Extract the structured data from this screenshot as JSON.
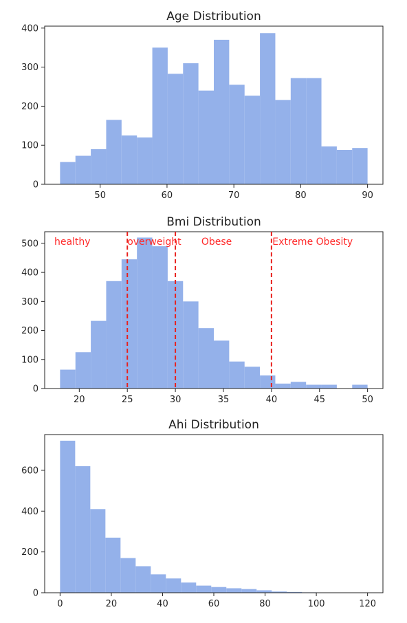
{
  "chart_data": [
    {
      "type": "bar",
      "title": "Age Distribution",
      "xlabel": "",
      "ylabel": "",
      "bar_color": "#94b1ea",
      "xlim": [
        41.7,
        92.3
      ],
      "ylim": [
        0,
        405
      ],
      "xticks": [
        50,
        60,
        70,
        80,
        90
      ],
      "yticks": [
        0,
        100,
        200,
        300,
        400
      ],
      "bin_edges": [
        44,
        46.3,
        48.6,
        50.9,
        53.2,
        55.5,
        57.8,
        60.1,
        62.4,
        64.7,
        67.0,
        69.3,
        71.6,
        73.9,
        76.2,
        78.5,
        80.8,
        83.1,
        85.4,
        87.7,
        90
      ],
      "values": [
        57,
        73,
        90,
        165,
        125,
        120,
        350,
        283,
        310,
        240,
        370,
        255,
        227,
        387,
        216,
        272,
        272,
        97,
        88,
        93
      ],
      "annotations": []
    },
    {
      "type": "bar",
      "title": "Bmi Distribution",
      "xlabel": "",
      "ylabel": "",
      "bar_color": "#94b1ea",
      "xlim": [
        16.4,
        51.6
      ],
      "ylim": [
        0,
        540
      ],
      "xticks": [
        20,
        25,
        30,
        35,
        40,
        45,
        50
      ],
      "yticks": [
        0,
        100,
        200,
        300,
        400,
        500
      ],
      "bin_edges": [
        18.0,
        19.6,
        21.2,
        22.8,
        24.4,
        26.0,
        27.6,
        29.2,
        30.8,
        32.4,
        34.0,
        35.6,
        37.2,
        38.8,
        40.4,
        42.0,
        43.6,
        45.2,
        46.8,
        48.4,
        50.0
      ],
      "values": [
        65,
        125,
        233,
        370,
        445,
        520,
        490,
        370,
        300,
        208,
        165,
        93,
        75,
        45,
        17,
        23,
        13,
        13,
        0,
        13
      ],
      "vlines": [
        25,
        30,
        40
      ],
      "vline_color": "#e8211d",
      "annotations": [
        {
          "text": "healthy",
          "x": 17.4
        },
        {
          "text": "overweight",
          "x": 25.0
        },
        {
          "text": "Obese",
          "x": 32.7
        },
        {
          "text": "Extreme Obesity",
          "x": 40.1
        }
      ]
    },
    {
      "type": "bar",
      "title": "Ahi Distribution",
      "xlabel": "",
      "ylabel": "",
      "bar_color": "#94b1ea",
      "xlim": [
        -6,
        126
      ],
      "ylim": [
        0,
        775
      ],
      "xticks": [
        0,
        20,
        40,
        60,
        80,
        100,
        120
      ],
      "yticks": [
        0,
        200,
        400,
        600
      ],
      "bin_edges": [
        0,
        5.9,
        11.8,
        17.7,
        23.6,
        29.5,
        35.4,
        41.3,
        47.2,
        53.1,
        59.0,
        64.9,
        70.8,
        76.7,
        82.6,
        88.5,
        94.4,
        100.3,
        106.2,
        112.1,
        118
      ],
      "values": [
        745,
        620,
        410,
        270,
        170,
        130,
        90,
        70,
        50,
        35,
        28,
        22,
        18,
        12,
        6,
        4,
        2,
        1,
        1,
        1
      ],
      "annotations": []
    }
  ]
}
